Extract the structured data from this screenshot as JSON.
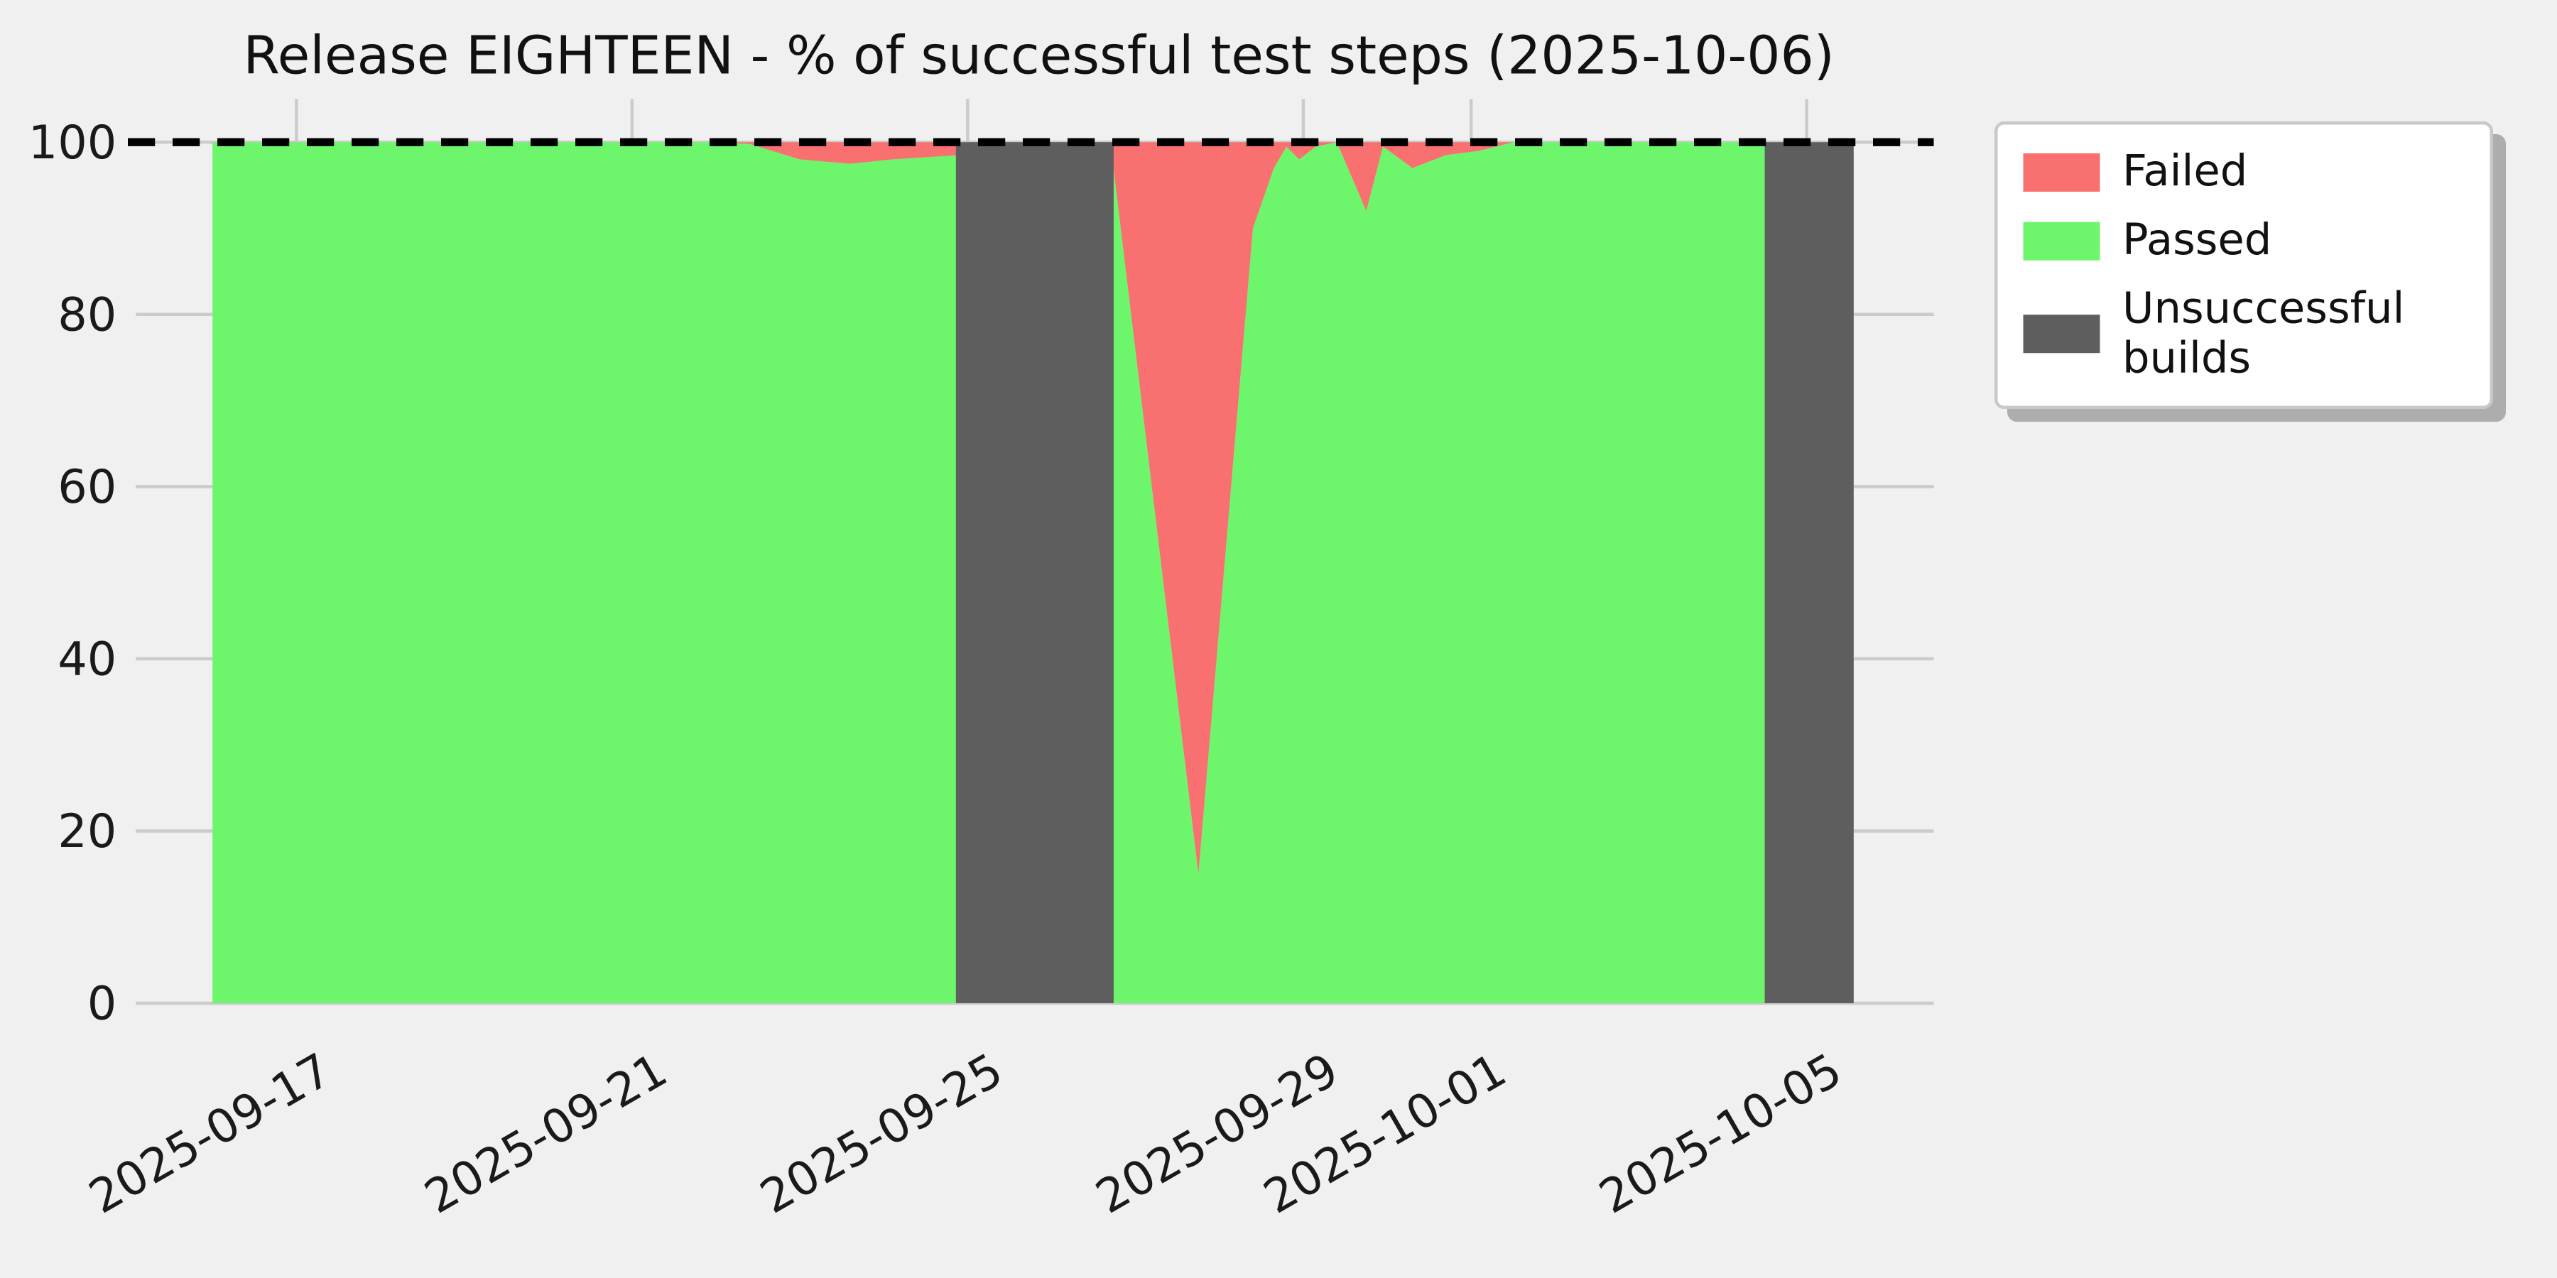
{
  "figure": {
    "background": "#f0f0f0"
  },
  "chart_data": {
    "type": "area",
    "title": "Release EIGHTEEN - % of successful test steps (2025-10-06)",
    "x_epoch_day0": "2025-09-16",
    "x_axis": {
      "ticks": [
        {
          "day": 1,
          "label": "2025-09-17"
        },
        {
          "day": 5,
          "label": "2025-09-21"
        },
        {
          "day": 9,
          "label": "2025-09-25"
        },
        {
          "day": 13,
          "label": "2025-09-29"
        },
        {
          "day": 15,
          "label": "2025-10-01"
        },
        {
          "day": 19,
          "label": "2025-10-05"
        }
      ],
      "tick_rotation_deg": 30
    },
    "y_axis": {
      "ticks": [
        0,
        20,
        40,
        60,
        80,
        100
      ],
      "lim": [
        0,
        105
      ]
    },
    "target_line_value": 100,
    "data_range_days": [
      0,
      19.56
    ],
    "series_passed_percent": [
      [
        0,
        100
      ],
      [
        1,
        100
      ],
      [
        2,
        100
      ],
      [
        3,
        100
      ],
      [
        4,
        100
      ],
      [
        5,
        100
      ],
      [
        6,
        100
      ],
      [
        6.4,
        99.8
      ],
      [
        7.0,
        98.0
      ],
      [
        7.6,
        97.5
      ],
      [
        8.1,
        98.0
      ],
      [
        8.9,
        98.5
      ],
      [
        10.7,
        100
      ],
      [
        11.75,
        15
      ],
      [
        12.4,
        90
      ],
      [
        12.65,
        97
      ],
      [
        12.8,
        99.5
      ],
      [
        12.95,
        98
      ],
      [
        13.15,
        99.5
      ],
      [
        13.4,
        100
      ],
      [
        13.75,
        92
      ],
      [
        13.95,
        99.5
      ],
      [
        14.3,
        97
      ],
      [
        14.7,
        98.5
      ],
      [
        15.1,
        99
      ],
      [
        15.5,
        100
      ],
      [
        16,
        100
      ],
      [
        17,
        100
      ],
      [
        18,
        100
      ],
      [
        19.56,
        100
      ]
    ],
    "unsuccessful_build_bands": [
      {
        "from_day": 8.86,
        "to_day": 10.74
      },
      {
        "from_day": 18.5,
        "to_day": 19.56
      }
    ],
    "grid": {
      "on": true,
      "color": "#cbcbcb"
    },
    "colors": {
      "failed": "#f8706f",
      "passed": "#6df66c",
      "unsuccessful": "#5e5e5e",
      "target_line": "#000000",
      "text": "#1a1a1a"
    },
    "legend": {
      "position": "upper-right-outside",
      "entries": [
        {
          "label": "Failed",
          "color": "#f8706f"
        },
        {
          "label": "Passed",
          "color": "#6df66c"
        },
        {
          "label": "Unsuccessful builds",
          "color": "#5e5e5e"
        }
      ]
    }
  }
}
